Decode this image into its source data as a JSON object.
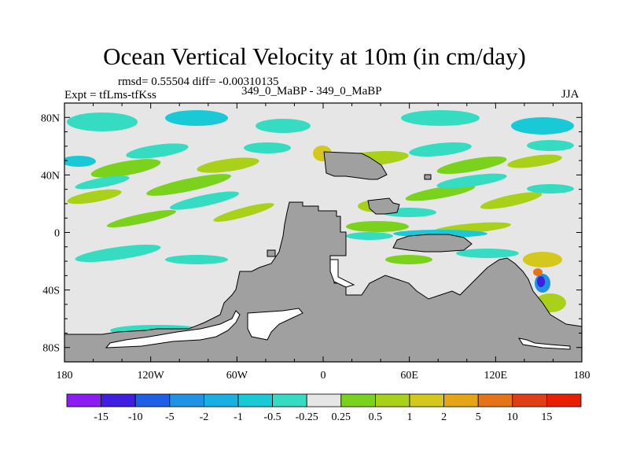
{
  "chart_data": {
    "type": "heatmap",
    "title": "Ocean Vertical Velocity at 10m (in cm/day)",
    "stats_text": "rmsd= 0.55504 diff= -0.00310135",
    "case_text": "349_0_MaBP - 349_0_MaBP",
    "experiment_text": "Expt = tfLms-tfKss",
    "season": "JJA",
    "x_ticks": [
      "180",
      "120W",
      "60W",
      "0",
      "60E",
      "120E",
      "180"
    ],
    "y_ticks": [
      "80N",
      "40N",
      "0",
      "40S",
      "80S"
    ],
    "xlim": [
      -180,
      180
    ],
    "ylim": [
      -90,
      90
    ],
    "colorbar_labels": [
      "-15",
      "-10",
      "-5",
      "-2",
      "-1",
      "-0.5",
      "-0.25",
      "0.25",
      "0.5",
      "1",
      "2",
      "5",
      "10",
      "15"
    ],
    "colorbar_colors": [
      "#8c1cf2",
      "#3f1ee0",
      "#1d5fe6",
      "#1f93e3",
      "#18b0e0",
      "#19cad6",
      "#35dcc2",
      "#e6e6e6",
      "#7ad21c",
      "#a9d119",
      "#d4c81c",
      "#e6a516",
      "#e57419",
      "#e03e14",
      "#e81f05"
    ]
  }
}
